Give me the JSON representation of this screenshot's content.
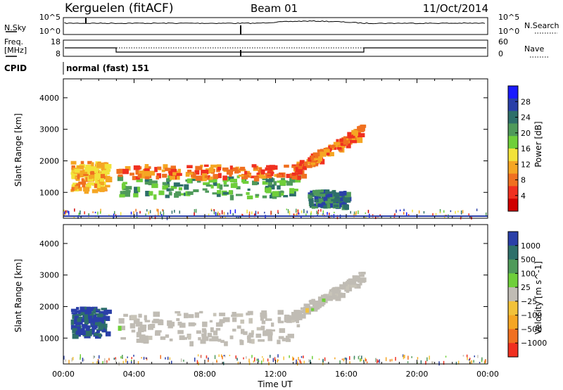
{
  "header": {
    "station": "Kerguelen (fitACF)",
    "beam": "Beam 01",
    "date": "11/Oct/2014"
  },
  "noise_panel": {
    "left_label": "N.Sky",
    "right_label": "N.Search",
    "left_ticks": [
      "10^5",
      "10^0"
    ],
    "right_ticks": [
      "10^5",
      "10^0"
    ]
  },
  "freq_panel": {
    "left_label_1": "Freq.",
    "left_label_2": "[MHz]",
    "right_label": "Nave",
    "left_ticks": [
      "18",
      "8"
    ],
    "right_ticks": [
      "60",
      "0"
    ]
  },
  "cpid": {
    "label": "CPID",
    "value": "normal (fast) 151"
  },
  "colors": {
    "power_scale": [
      "#1a1aff",
      "#2a3fa8",
      "#2e6f6a",
      "#4f9a5a",
      "#6fcf3a",
      "#f2e23a",
      "#f5a623",
      "#f07020",
      "#f03020",
      "#d00000"
    ],
    "velocity_scale": [
      "#2a3fa8",
      "#2e6f6a",
      "#4f9a5a",
      "#6fcf3a",
      "#c8c4b8",
      "#f2c23a",
      "#f5a623",
      "#f07020",
      "#f03020"
    ],
    "ground_scatter": "#c0bcb4"
  },
  "chart_data": [
    {
      "type": "heatmap",
      "title": "",
      "xlabel": "Time UT",
      "ylabel": "Slant Range [km]",
      "colorbar_label": "Power [dB]",
      "colorbar_ticks": [
        "28",
        "24",
        "20",
        "16",
        "12",
        "8",
        "4"
      ],
      "colorbar_range": [
        0,
        32
      ],
      "x_ticks": [
        "00:00",
        "04:00",
        "08:00",
        "12:00",
        "16:00",
        "20:00",
        "00:00"
      ],
      "y_ticks": [
        "4000",
        "3000",
        "2000",
        "1000"
      ],
      "xlim_hours": [
        0,
        24
      ],
      "ylim_km": [
        180,
        4600
      ],
      "echo_regions": [
        {
          "name": "early patch",
          "t_start": 0.4,
          "t_end": 2.4,
          "range_low": 1100,
          "range_high": 2000,
          "power_db": 12
        },
        {
          "name": "main band",
          "t_start": 3.0,
          "t_end": 13.2,
          "range_low": 900,
          "range_high": 1550,
          "power_db": 20
        },
        {
          "name": "upper band",
          "t_start": 3.0,
          "t_end": 13.5,
          "range_low": 1500,
          "range_high": 1900,
          "power_db": 8
        },
        {
          "name": "rising arc",
          "t_start": 12.8,
          "t_end": 16.9,
          "range_low": 1500,
          "range_high": 3000,
          "power_db": 8
        },
        {
          "name": "lower patch",
          "t_start": 13.8,
          "t_end": 16.0,
          "range_low": 600,
          "range_high": 1100,
          "power_db": 24
        }
      ]
    },
    {
      "type": "heatmap",
      "title": "",
      "xlabel": "Time UT",
      "ylabel": "Slant Range [km]",
      "colorbar_label": "Velocity [m s^-1]",
      "colorbar_ticks": [
        "1000",
        "500",
        "100",
        "25",
        "-25",
        "-100",
        "-500",
        "-1000"
      ],
      "colorbar_range": [
        -1250,
        1250
      ],
      "x_ticks": [
        "00:00",
        "04:00",
        "08:00",
        "12:00",
        "16:00",
        "20:00",
        "00:00"
      ],
      "y_ticks": [
        "4000",
        "3000",
        "2000",
        "1000"
      ],
      "xlim_hours": [
        0,
        24
      ],
      "ylim_km": [
        180,
        4600
      ],
      "echo_regions": [
        {
          "name": "early patch",
          "t_start": 0.4,
          "t_end": 2.4,
          "range_low": 1100,
          "range_high": 2000,
          "velocity": 1000
        },
        {
          "name": "main band",
          "t_start": 3.0,
          "t_end": 13.2,
          "range_low": 900,
          "range_high": 1900,
          "velocity": 0
        },
        {
          "name": "rising arc",
          "t_start": 12.8,
          "t_end": 16.9,
          "range_low": 1500,
          "range_high": 3000,
          "velocity": 0
        }
      ]
    }
  ]
}
